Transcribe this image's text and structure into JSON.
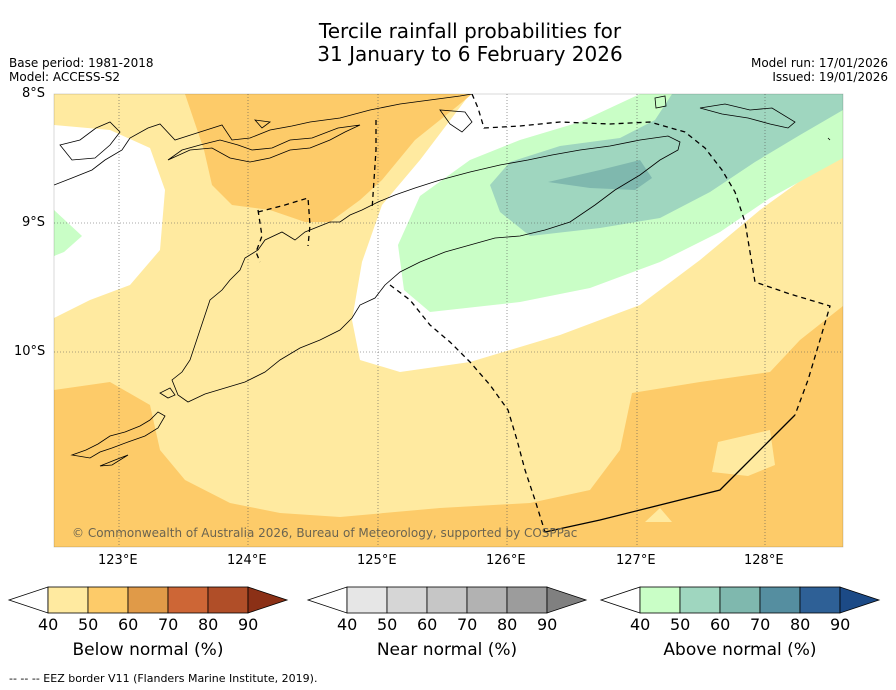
{
  "title": {
    "line1": "Tercile rainfall probabilities for",
    "line2": "31 January to 6 February 2026"
  },
  "meta": {
    "base_period": "Base period: 1981-2018",
    "model": "Model: ACCESS-S2",
    "model_run": "Model run: 17/01/2026",
    "issued": "Issued: 19/01/2026"
  },
  "map": {
    "lat_labels": [
      "8°S",
      "9°S",
      "10°S"
    ],
    "lon_labels": [
      "123°E",
      "124°E",
      "125°E",
      "126°E",
      "127°E",
      "128°E"
    ],
    "copyright": "© Commonwealth of Australia 2026, Bureau of Meteorology, supported by COSPPac"
  },
  "colors": {
    "below_50": "#ffeaa0",
    "below_60": "#fdcb69",
    "below_70": "#e09a48",
    "below_80": "#cd6636",
    "below_90": "#b04e28",
    "below_max": "#8b3016",
    "near_50": "#e6e6e6",
    "near_60": "#d6d6d6",
    "near_70": "#c6c6c6",
    "near_80": "#b2b2b2",
    "near_90": "#9c9c9c",
    "near_max": "#808080",
    "above_50": "#c9fec6",
    "above_60": "#9fd6bf",
    "above_70": "#7fb8ae",
    "above_80": "#558ea0",
    "above_90": "#2e6096",
    "above_max": "#1c4a86"
  },
  "colorbars": [
    {
      "label": "Below normal (%)",
      "ticks": [
        "40",
        "50",
        "60",
        "70",
        "80",
        "90"
      ]
    },
    {
      "label": "Near normal (%)",
      "ticks": [
        "40",
        "50",
        "60",
        "70",
        "80",
        "90"
      ]
    },
    {
      "label": "Above normal (%)",
      "ticks": [
        "40",
        "50",
        "60",
        "70",
        "80",
        "90"
      ]
    }
  ],
  "footnote": "--  --  -- EEZ border V11 (Flanders Marine Institute, 2019)."
}
